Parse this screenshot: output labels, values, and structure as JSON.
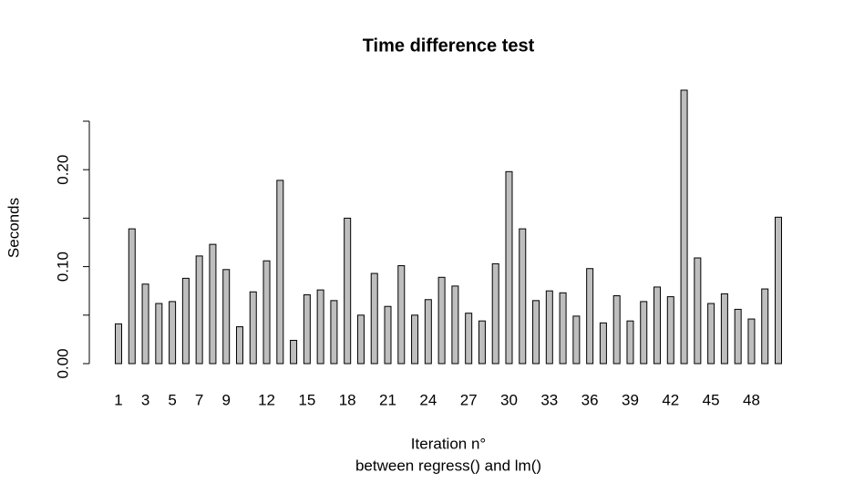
{
  "chart_data": {
    "type": "bar",
    "title": "Time difference test",
    "xlabel": [
      "Iteration n°",
      "between regress() and lm()"
    ],
    "ylabel": "Seconds",
    "categories": [
      1,
      null,
      3,
      null,
      5,
      null,
      7,
      null,
      9,
      null,
      null,
      12,
      null,
      null,
      15,
      null,
      null,
      18,
      null,
      null,
      21,
      null,
      null,
      24,
      null,
      null,
      27,
      null,
      null,
      30,
      null,
      null,
      33,
      null,
      null,
      36,
      null,
      null,
      39,
      null,
      null,
      42,
      null,
      null,
      45,
      null,
      null,
      48,
      null,
      null
    ],
    "values": [
      0.041,
      0.139,
      0.082,
      0.062,
      0.064,
      0.088,
      0.111,
      0.123,
      0.097,
      0.038,
      0.074,
      0.106,
      0.189,
      0.024,
      0.071,
      0.076,
      0.065,
      0.15,
      0.05,
      0.093,
      0.059,
      0.101,
      0.05,
      0.066,
      0.089,
      0.08,
      0.052,
      0.044,
      0.103,
      0.198,
      0.139,
      0.065,
      0.075,
      0.073,
      0.049,
      0.098,
      0.042,
      0.07,
      0.044,
      0.064,
      0.079,
      0.069,
      0.282,
      0.109,
      0.062,
      0.072,
      0.056,
      0.046,
      0.077,
      0.151
    ],
    "color": "#bebebe",
    "ylim": [
      0,
      0.25
    ],
    "yticks": [
      {
        "value": 0,
        "label": "0.00"
      },
      {
        "value": 0.1,
        "label": "0.10"
      },
      {
        "value": 0.2,
        "label": "0.20"
      }
    ],
    "yticks_unlabeled": [
      0.05,
      0.15,
      0.25
    ]
  }
}
